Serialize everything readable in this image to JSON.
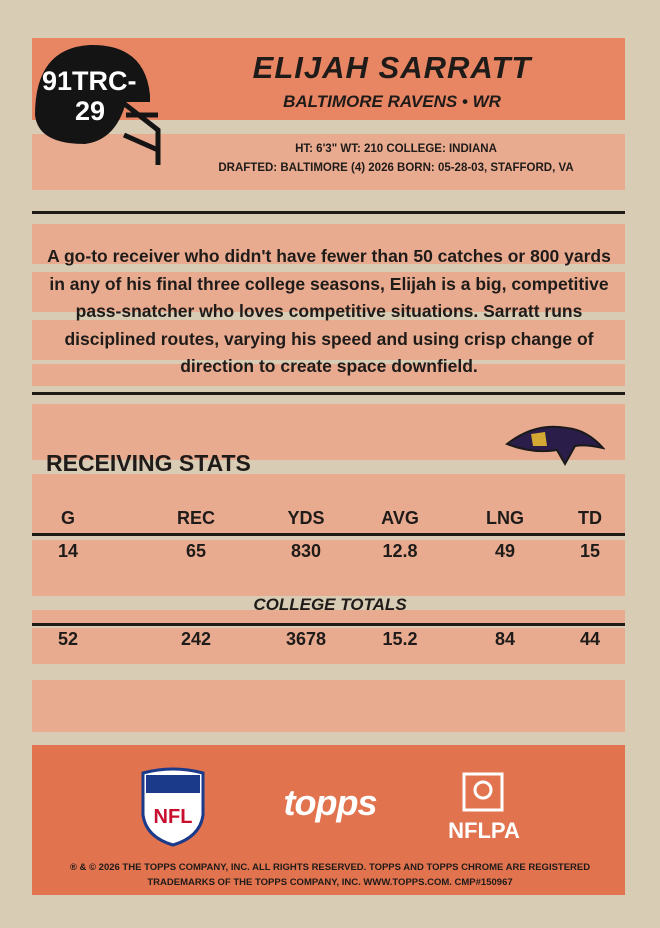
{
  "card_number": [
    "91TRC-",
    "29"
  ],
  "player": {
    "name": "ELIJAH SARRATT",
    "team_position": "BALTIMORE RAVENS • WR"
  },
  "bio": {
    "line1": "HT: 6'3\"  WT: 210  COLLEGE: INDIANA",
    "line2": "DRAFTED: BALTIMORE (4) 2026  BORN: 05-28-03, STAFFORD, VA"
  },
  "blurb": "A go-to receiver who didn't have fewer than 50 catches or 800 yards in any of his final three college seasons, Elijah is a big, competitive pass-snatcher who loves competitive situations. Sarratt runs disciplined routes, varying his speed and using crisp change of direction to create space downfield.",
  "stats": {
    "title": "RECEIVING STATS",
    "headers": [
      "G",
      "REC",
      "YDS",
      "AVG",
      "LNG",
      "TD"
    ],
    "season": [
      "14",
      "65",
      "830",
      "12.8",
      "49",
      "15"
    ],
    "totals_label": "COLLEGE TOTALS",
    "totals": [
      "52",
      "242",
      "3678",
      "15.2",
      "84",
      "44"
    ]
  },
  "footer": {
    "nfl": "NFL",
    "topps": "topps",
    "nflpa": "NFLPA",
    "legal": [
      "® & © 2026 THE TOPPS COMPANY, INC. ALL RIGHTS RESERVED. TOPPS AND TOPPS CHROME ARE REGISTERED",
      "TRADEMARKS OF THE TOPPS COMPANY, INC. WWW.TOPPS.COM. CMP#150967"
    ]
  }
}
